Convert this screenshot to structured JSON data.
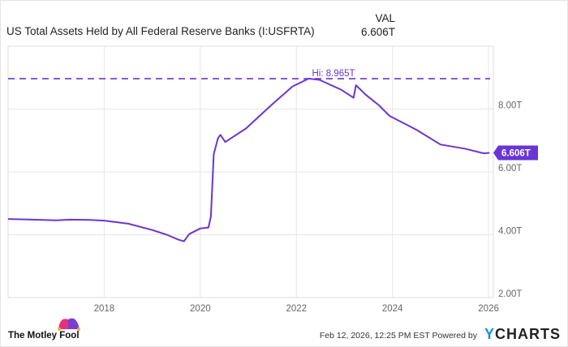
{
  "header": {
    "title": "US Total Assets Held by All Federal Reserve Banks (I:USFRTA)",
    "val_label": "VAL",
    "val_value": "6.606T"
  },
  "footer": {
    "logo_text": "The Motley Fool",
    "timestamp": "Feb 12, 2026, 12:25 PM EST",
    "powered_by": "Powered by",
    "brand_y": "Y",
    "brand_rest": "CHARTS"
  },
  "colors": {
    "series": "#6a35d4",
    "grid": "#e6e6e6",
    "tick_text": "#666666"
  },
  "chart_data": {
    "type": "line",
    "title": "US Total Assets Held by All Federal Reserve Banks (I:USFRTA)",
    "xlabel": "",
    "ylabel": "",
    "xlim": [
      2016.0,
      2026.1
    ],
    "ylim": [
      2,
      10
    ],
    "y_axis_side": "right",
    "grid": true,
    "x_ticks": [
      "2018",
      "2020",
      "2022",
      "2024",
      "2026"
    ],
    "y_ticks": [
      "2.00T",
      "4.00T",
      "6.00T",
      "8.00T"
    ],
    "y_tick_values": [
      2,
      4,
      6,
      8
    ],
    "x_tick_values": [
      2018,
      2020,
      2022,
      2024,
      2026
    ],
    "high": {
      "value": 8.965,
      "label": "Hi: 8.965T"
    },
    "last": {
      "value": 6.606,
      "label": "6.606T"
    },
    "series": [
      {
        "unit": "T",
        "x": [
          2016.0,
          2016.5,
          2017.0,
          2017.3,
          2017.7,
          2018.0,
          2018.5,
          2019.0,
          2019.3,
          2019.55,
          2019.66,
          2019.77,
          2020.0,
          2020.17,
          2020.22,
          2020.28,
          2020.37,
          2020.42,
          2020.52,
          2020.95,
          2021.46,
          2021.92,
          2022.26,
          2022.48,
          2022.94,
          2023.19,
          2023.24,
          2023.44,
          2023.72,
          2023.94,
          2024.5,
          2025.0,
          2025.5,
          2025.9,
          2026.02
        ],
        "y": [
          4.5,
          4.48,
          4.46,
          4.48,
          4.47,
          4.45,
          4.35,
          4.15,
          4.0,
          3.84,
          3.79,
          4.02,
          4.2,
          4.23,
          4.58,
          6.56,
          7.08,
          7.18,
          6.95,
          7.38,
          8.1,
          8.72,
          8.97,
          8.93,
          8.61,
          8.36,
          8.76,
          8.46,
          8.12,
          7.78,
          7.34,
          6.87,
          6.74,
          6.59,
          6.606
        ]
      }
    ]
  }
}
